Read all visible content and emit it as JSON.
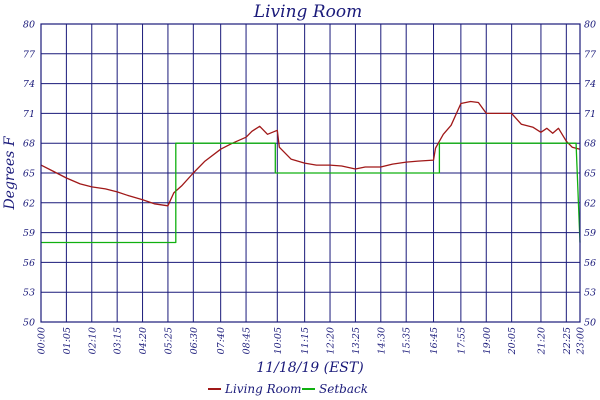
{
  "chart_data": {
    "type": "line",
    "title": "Living Room",
    "xlabel": "11/18/19 (EST)",
    "ylabel": "Degrees F",
    "ylim": [
      50,
      80
    ],
    "xlim": [
      "00:00",
      "23:00"
    ],
    "y_ticks": [
      "50",
      "53",
      "56",
      "59",
      "62",
      "65",
      "68",
      "71",
      "74",
      "77",
      "80"
    ],
    "x_ticks": [
      "00:00",
      "01:05",
      "02:10",
      "03:15",
      "04:20",
      "05:25",
      "06:30",
      "07:40",
      "08:45",
      "10:05",
      "11:15",
      "12:20",
      "13:25",
      "14:30",
      "15:35",
      "16:45",
      "17:55",
      "19:00",
      "20:05",
      "21:20",
      "22:25",
      "23:00"
    ],
    "grid": true,
    "legend_position": "bottom",
    "series": [
      {
        "name": "Living Room",
        "color": "#a01818",
        "x": [
          "00:00",
          "00:30",
          "01:05",
          "01:40",
          "02:10",
          "02:45",
          "03:15",
          "03:45",
          "04:20",
          "04:50",
          "05:25",
          "05:40",
          "06:00",
          "06:30",
          "07:00",
          "07:40",
          "08:10",
          "08:45",
          "09:00",
          "09:20",
          "09:40",
          "10:05",
          "10:10",
          "10:40",
          "11:15",
          "11:45",
          "12:20",
          "12:50",
          "13:25",
          "13:50",
          "14:30",
          "15:00",
          "15:35",
          "16:05",
          "16:45",
          "16:50",
          "17:10",
          "17:30",
          "17:55",
          "18:20",
          "18:40",
          "19:00",
          "19:20",
          "19:40",
          "20:05",
          "20:30",
          "21:00",
          "21:20",
          "21:35",
          "21:50",
          "22:05",
          "22:25",
          "22:40",
          "23:00"
        ],
        "values": [
          65.8,
          65.2,
          64.5,
          63.9,
          63.6,
          63.4,
          63.1,
          62.7,
          62.3,
          61.9,
          61.7,
          63.0,
          63.7,
          65.0,
          66.2,
          67.4,
          68.0,
          68.6,
          69.2,
          69.7,
          68.9,
          69.3,
          67.6,
          66.4,
          66.0,
          65.8,
          65.8,
          65.7,
          65.4,
          65.6,
          65.6,
          65.9,
          66.1,
          66.2,
          66.3,
          67.5,
          68.9,
          69.8,
          72.0,
          72.2,
          72.1,
          71.0,
          71.0,
          71.0,
          71.0,
          69.9,
          69.6,
          69.1,
          69.5,
          69.0,
          69.5,
          68.2,
          67.6,
          67.4
        ]
      },
      {
        "name": "Setback",
        "color": "#10b010",
        "x": [
          "00:00",
          "05:45",
          "05:45",
          "10:00",
          "10:00",
          "17:00",
          "17:00",
          "22:50",
          "22:50",
          "23:00"
        ],
        "values": [
          58.0,
          58.0,
          68.0,
          68.0,
          65.0,
          65.0,
          68.0,
          68.0,
          67.9,
          58.0
        ]
      }
    ]
  }
}
